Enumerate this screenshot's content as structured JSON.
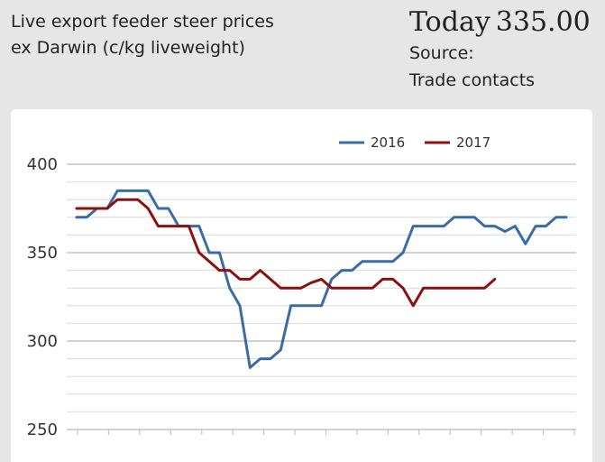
{
  "header": {
    "title_line1": "Live export feeder steer prices",
    "title_line2": "ex Darwin (c/kg liveweight)",
    "today_label": "Today",
    "today_value": "335.00",
    "source_label": "Source:",
    "source_value": "Trade contacts"
  },
  "chart_data": {
    "type": "line",
    "title": "",
    "xlabel": "",
    "ylabel": "",
    "ylim": [
      250,
      400
    ],
    "yticks": [
      250,
      300,
      350,
      400
    ],
    "grid": true,
    "legend_position": "top-center",
    "series": [
      {
        "name": "2016",
        "color": "#3a6ca6",
        "values": [
          370,
          370,
          375,
          375,
          385,
          385,
          385,
          385,
          375,
          375,
          365,
          365,
          365,
          350,
          350,
          330,
          320,
          285,
          290,
          290,
          295,
          320,
          320,
          320,
          320,
          335,
          340,
          340,
          345,
          345,
          345,
          345,
          350,
          365,
          365,
          365,
          365,
          370,
          370,
          370,
          365,
          365,
          362,
          365,
          355,
          365,
          365,
          370,
          370
        ]
      },
      {
        "name": "2017",
        "color": "#8b1010",
        "values": [
          375,
          375,
          375,
          375,
          380,
          380,
          380,
          375,
          365,
          365,
          365,
          365,
          350,
          345,
          340,
          340,
          335,
          335,
          340,
          335,
          330,
          330,
          330,
          333,
          335,
          330,
          330,
          330,
          330,
          330,
          335,
          335,
          330,
          320,
          330,
          330,
          330,
          330,
          330,
          330,
          330,
          335
        ]
      }
    ]
  }
}
